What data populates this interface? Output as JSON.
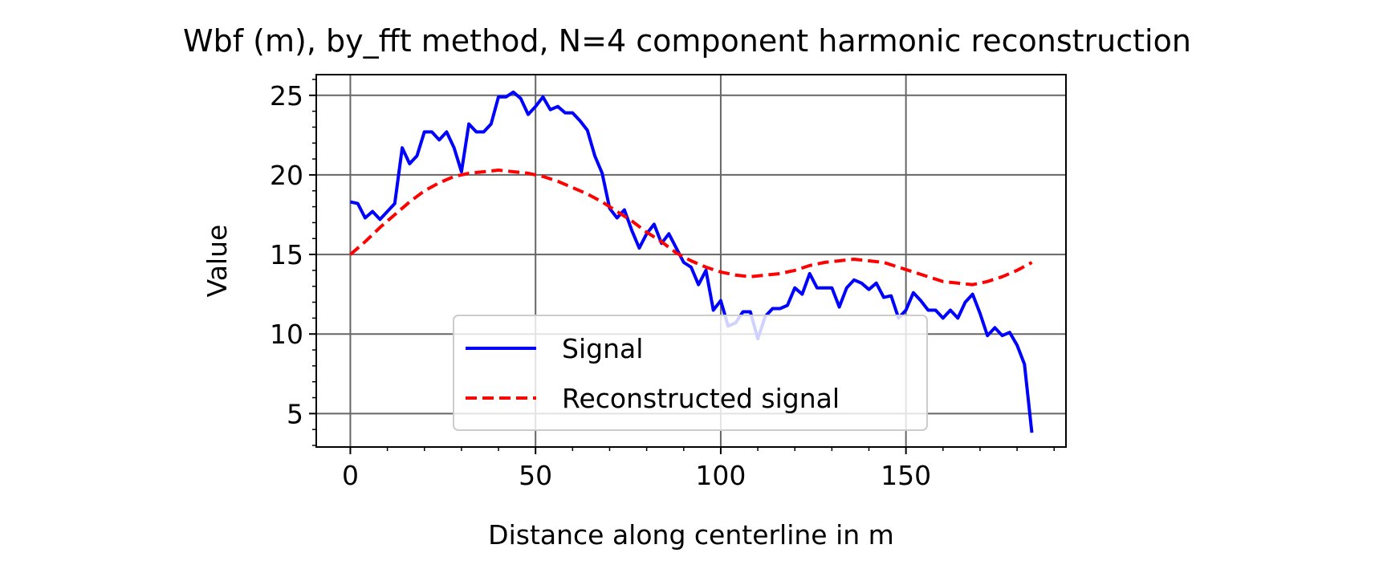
{
  "chart_data": {
    "type": "line",
    "title": "Wbf (m), by_fft method, N=4 component harmonic reconstruction",
    "xlabel": "Distance along centerline in m",
    "ylabel": "Value",
    "xlim": [
      -9.2,
      193.2
    ],
    "ylim": [
      2.9,
      26.3
    ],
    "xticks": [
      0,
      50,
      100,
      150
    ],
    "yticks": [
      5,
      10,
      15,
      20,
      25
    ],
    "x_minor_step": 10,
    "y_minor_step": 1,
    "grid": true,
    "legend_position": "lower center",
    "series": [
      {
        "name": "Signal",
        "color": "#0000ff",
        "style": "solid",
        "x": [
          0,
          2,
          4,
          6,
          8,
          10,
          12,
          14,
          16,
          18,
          20,
          22,
          24,
          26,
          28,
          30,
          32,
          34,
          36,
          38,
          40,
          42,
          44,
          46,
          48,
          50,
          52,
          54,
          56,
          58,
          60,
          62,
          64,
          66,
          68,
          70,
          72,
          74,
          76,
          78,
          80,
          82,
          84,
          86,
          88,
          90,
          92,
          94,
          96,
          98,
          100,
          102,
          104,
          106,
          108,
          110,
          112,
          114,
          116,
          118,
          120,
          122,
          124,
          126,
          128,
          130,
          132,
          134,
          136,
          138,
          140,
          142,
          144,
          146,
          148,
          150,
          152,
          154,
          156,
          158,
          160,
          162,
          164,
          166,
          168,
          170,
          172,
          174,
          176,
          178,
          180,
          182,
          184
        ],
        "y": [
          18.3,
          18.2,
          17.3,
          17.7,
          17.2,
          17.7,
          18.2,
          21.7,
          20.7,
          21.2,
          22.7,
          22.7,
          22.2,
          22.7,
          21.7,
          20.2,
          23.2,
          22.7,
          22.7,
          23.2,
          24.9,
          24.9,
          25.2,
          24.8,
          23.8,
          24.3,
          24.9,
          24.1,
          24.3,
          23.9,
          23.9,
          23.4,
          22.8,
          21.2,
          20.1,
          17.9,
          17.3,
          17.8,
          16.5,
          15.4,
          16.3,
          16.9,
          15.7,
          16.3,
          15.4,
          14.5,
          14.2,
          13.1,
          14.0,
          11.5,
          12.1,
          10.5,
          10.7,
          11.4,
          11.4,
          9.7,
          11.1,
          11.6,
          11.6,
          11.8,
          12.9,
          12.5,
          13.8,
          12.9,
          12.9,
          12.9,
          11.7,
          12.9,
          13.4,
          13.2,
          12.8,
          13.2,
          12.3,
          12.4,
          11.0,
          11.5,
          12.6,
          12.1,
          11.5,
          11.5,
          11.0,
          11.5,
          11.0,
          12.0,
          12.5,
          11.3,
          9.9,
          10.4,
          9.9,
          10.1,
          9.3,
          8.1,
          3.8
        ]
      },
      {
        "name": "Reconstructed signal",
        "color": "#ff0000",
        "style": "dashed",
        "x": [
          0,
          4,
          8,
          12,
          16,
          20,
          24,
          28,
          32,
          36,
          40,
          44,
          48,
          52,
          56,
          60,
          64,
          68,
          72,
          76,
          80,
          84,
          88,
          92,
          96,
          100,
          104,
          108,
          112,
          116,
          120,
          124,
          128,
          132,
          136,
          140,
          144,
          148,
          152,
          156,
          160,
          164,
          168,
          172,
          176,
          180,
          184
        ],
        "y": [
          15.0,
          15.8,
          16.7,
          17.5,
          18.3,
          19.0,
          19.5,
          19.9,
          20.1,
          20.2,
          20.3,
          20.2,
          20.1,
          19.9,
          19.6,
          19.2,
          18.8,
          18.3,
          17.7,
          17.1,
          16.4,
          15.8,
          15.1,
          14.6,
          14.2,
          13.9,
          13.7,
          13.6,
          13.7,
          13.8,
          14.0,
          14.3,
          14.5,
          14.6,
          14.7,
          14.6,
          14.5,
          14.2,
          13.9,
          13.6,
          13.3,
          13.2,
          13.1,
          13.3,
          13.6,
          14.0,
          14.5
        ]
      }
    ]
  }
}
